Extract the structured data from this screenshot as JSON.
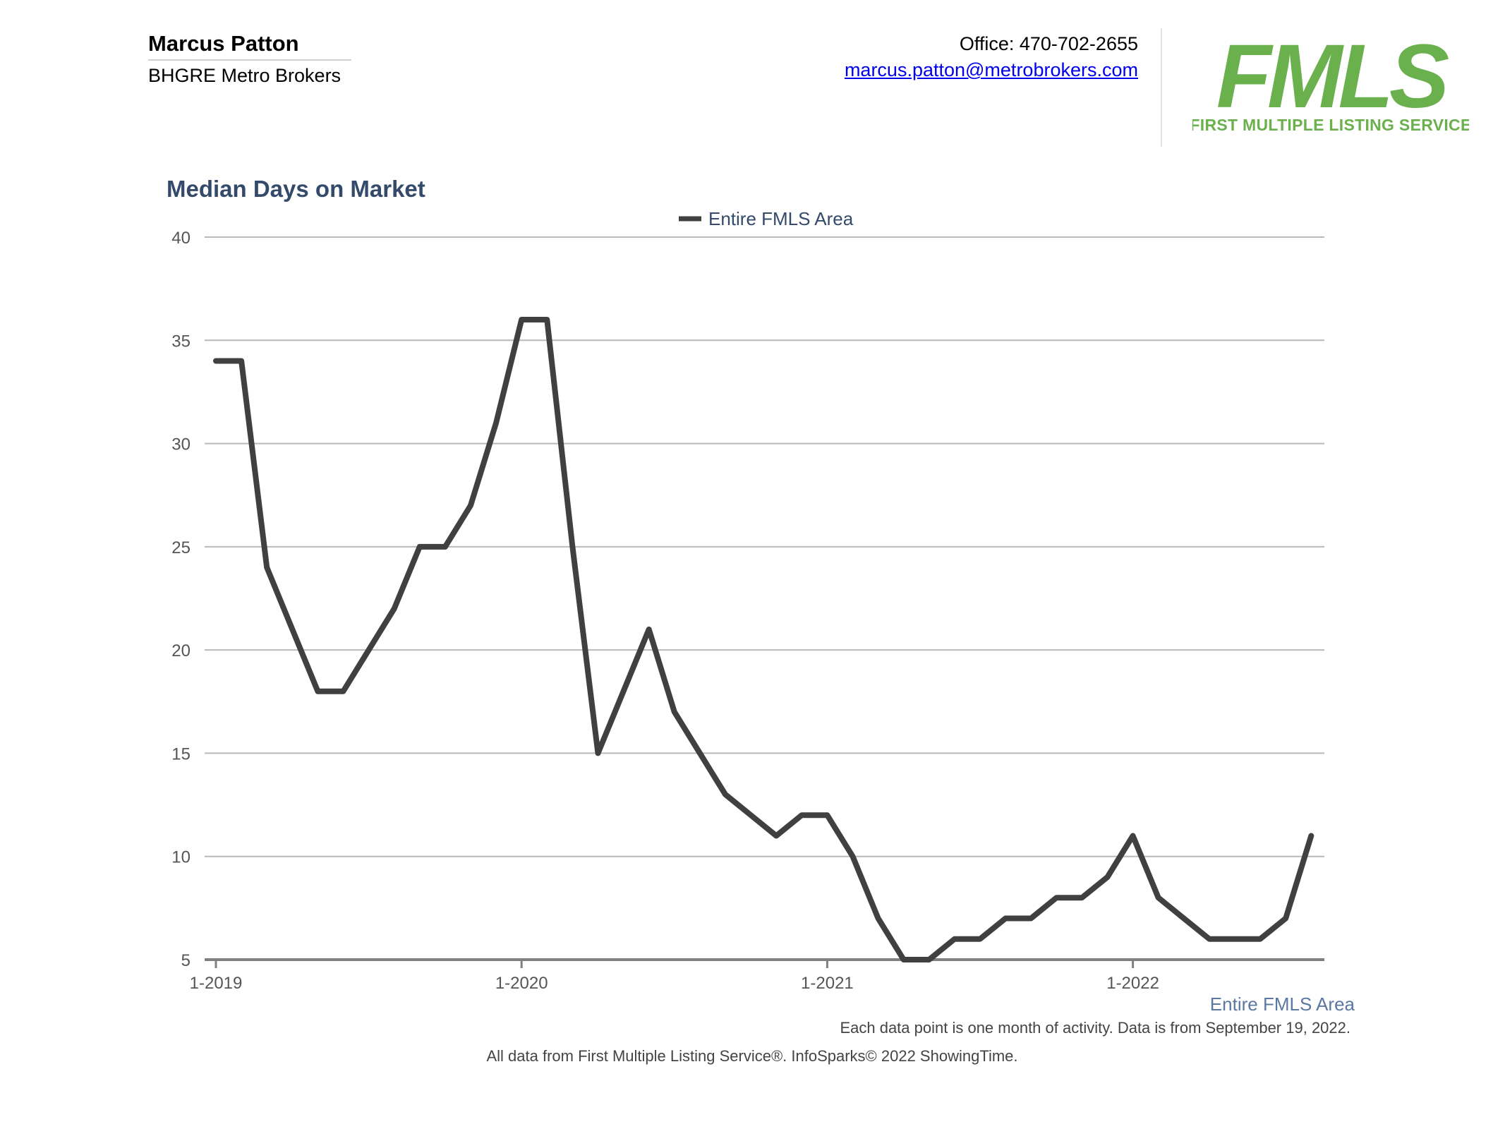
{
  "header": {
    "agent_name": "Marcus Patton",
    "company": "BHGRE Metro Brokers",
    "office_phone": "Office: 470-702-2655",
    "email": "marcus.patton@metrobrokers.com"
  },
  "logo": {
    "wordmark": "FMLS",
    "tagline": "FIRST MULTIPLE LISTING SERVICE",
    "color": "#6ab04c"
  },
  "chart_data": {
    "type": "line",
    "title": "Median Days on Market",
    "xlabel": "Entire FMLS Area",
    "ylabel": "",
    "ylim": [
      5,
      40
    ],
    "yticks": [
      5,
      10,
      15,
      20,
      25,
      30,
      35,
      40
    ],
    "x_tick_labels": [
      "1-2019",
      "1-2020",
      "1-2021",
      "1-2022"
    ],
    "grid": true,
    "legend_position": "top-center",
    "line_color": "#404040",
    "series": [
      {
        "name": "Entire FMLS Area",
        "x": [
          "2019-01",
          "2019-02",
          "2019-03",
          "2019-04",
          "2019-05",
          "2019-06",
          "2019-07",
          "2019-08",
          "2019-09",
          "2019-10",
          "2019-11",
          "2019-12",
          "2020-01",
          "2020-02",
          "2020-03",
          "2020-04",
          "2020-05",
          "2020-06",
          "2020-07",
          "2020-08",
          "2020-09",
          "2020-10",
          "2020-11",
          "2020-12",
          "2021-01",
          "2021-02",
          "2021-03",
          "2021-04",
          "2021-05",
          "2021-06",
          "2021-07",
          "2021-08",
          "2021-09",
          "2021-10",
          "2021-11",
          "2021-12",
          "2022-01",
          "2022-02",
          "2022-03",
          "2022-04",
          "2022-05",
          "2022-06",
          "2022-07",
          "2022-08"
        ],
        "values": [
          34,
          34,
          24,
          21,
          18,
          18,
          20,
          22,
          25,
          25,
          27,
          31,
          36,
          36,
          25,
          15,
          18,
          21,
          17,
          15,
          13,
          12,
          11,
          12,
          12,
          10,
          7,
          5,
          5,
          6,
          6,
          7,
          7,
          8,
          8,
          9,
          11,
          8,
          7,
          6,
          6,
          6,
          7,
          11
        ]
      }
    ]
  },
  "footnotes": {
    "data_note": "Each data point is one month of activity. Data is from September 19, 2022.",
    "source": "All data from First Multiple Listing Service®. InfoSparks© 2022 ShowingTime."
  }
}
